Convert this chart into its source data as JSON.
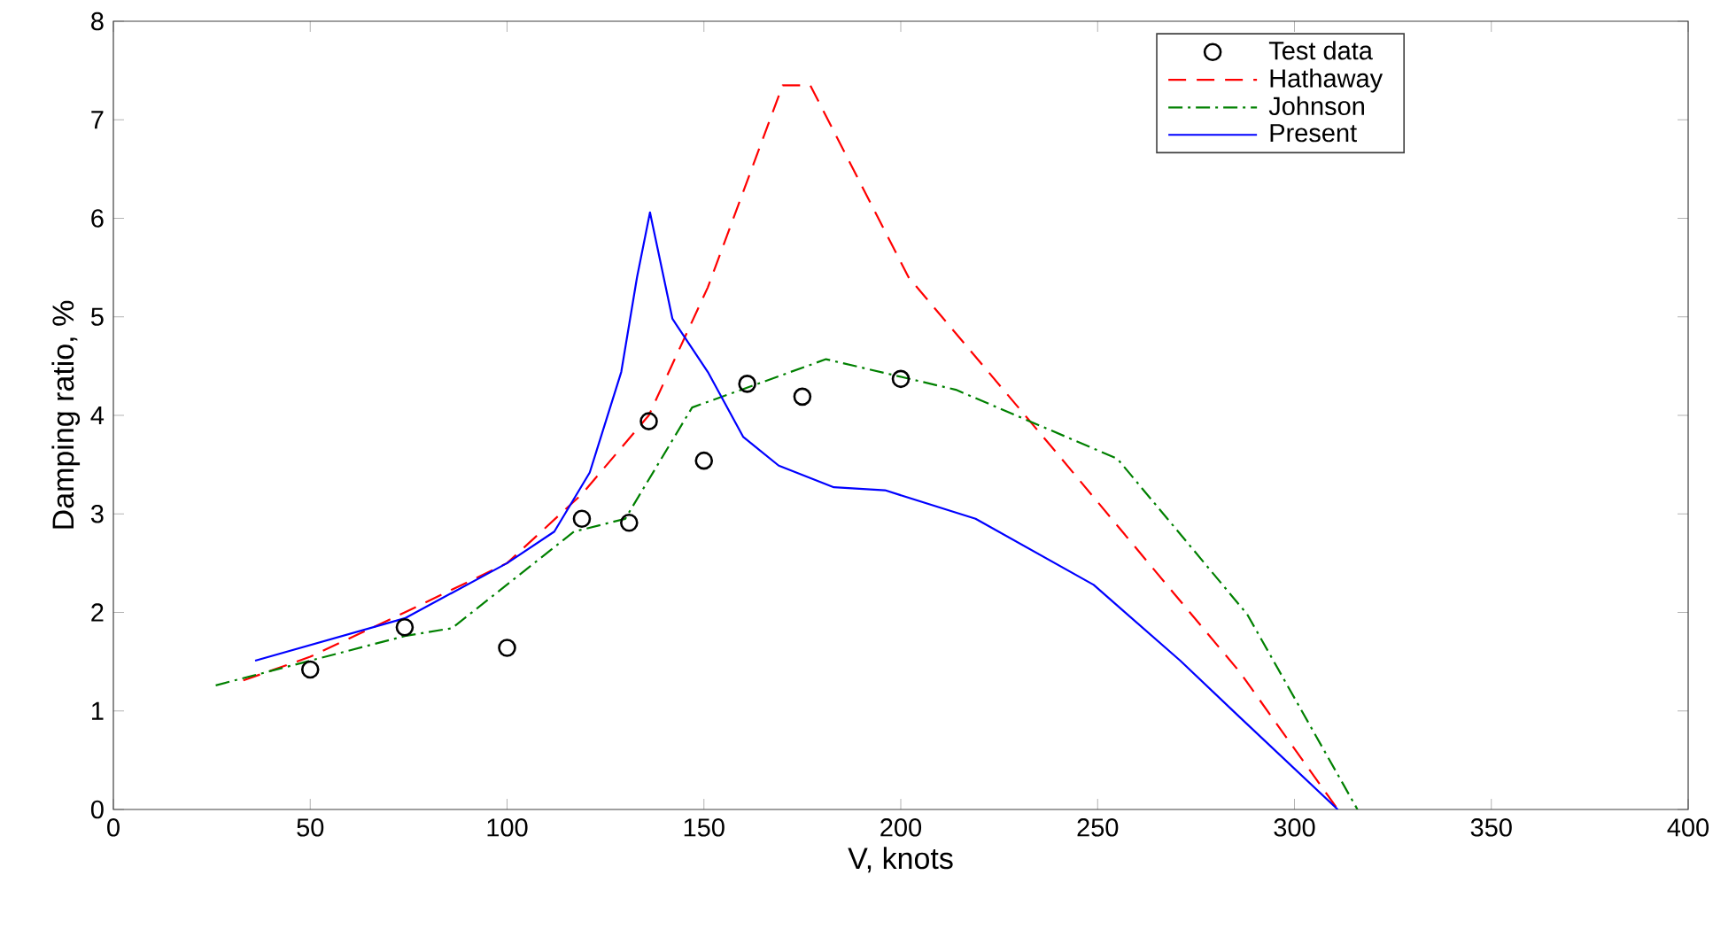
{
  "chart_data": {
    "type": "line",
    "xlabel": "V, knots",
    "ylabel": "Damping ratio, %",
    "xlim": [
      0,
      400
    ],
    "ylim": [
      0,
      8
    ],
    "xticks": [
      0,
      50,
      100,
      150,
      200,
      250,
      300,
      350,
      400
    ],
    "yticks": [
      0,
      1,
      2,
      3,
      4,
      5,
      6,
      7,
      8
    ],
    "grid": false,
    "legend": "top right",
    "series": [
      {
        "name": "Test data",
        "type": "scatter",
        "marker": "circle",
        "color": "#000000",
        "x": [
          50,
          74,
          100,
          119,
          131,
          136,
          150,
          161,
          175,
          200
        ],
        "values": [
          1.42,
          1.85,
          1.64,
          2.95,
          2.91,
          3.94,
          3.54,
          4.32,
          4.19,
          4.37
        ]
      },
      {
        "name": "Hathaway",
        "line_style": "dashed",
        "color": "#ff0000",
        "x": [
          33,
          50,
          74,
          100,
          119,
          136,
          151,
          170,
          177,
          202,
          240,
          264,
          286,
          311
        ],
        "values": [
          1.31,
          1.55,
          2.0,
          2.5,
          3.2,
          4.0,
          5.3,
          7.35,
          7.35,
          5.4,
          3.6,
          2.45,
          1.4,
          0
        ]
      },
      {
        "name": "Johnson",
        "line_style": "dashdot",
        "color": "#008000",
        "x": [
          26,
          74,
          86,
          117,
          130,
          147,
          181,
          214,
          255,
          288,
          316
        ],
        "values": [
          1.26,
          1.76,
          1.84,
          2.82,
          2.95,
          4.08,
          4.57,
          4.26,
          3.56,
          1.98,
          0
        ]
      },
      {
        "name": "Present",
        "line_style": "solid",
        "color": "#0000ff",
        "x": [
          36,
          74,
          100,
          112,
          121,
          129,
          133,
          136.3,
          142,
          151,
          160,
          169,
          183,
          196,
          219,
          249,
          271,
          286,
          311
        ],
        "values": [
          1.51,
          1.94,
          2.5,
          2.82,
          3.42,
          4.44,
          5.4,
          6.06,
          4.98,
          4.44,
          3.78,
          3.49,
          3.27,
          3.24,
          2.95,
          2.28,
          1.51,
          0.94,
          0
        ]
      }
    ]
  }
}
